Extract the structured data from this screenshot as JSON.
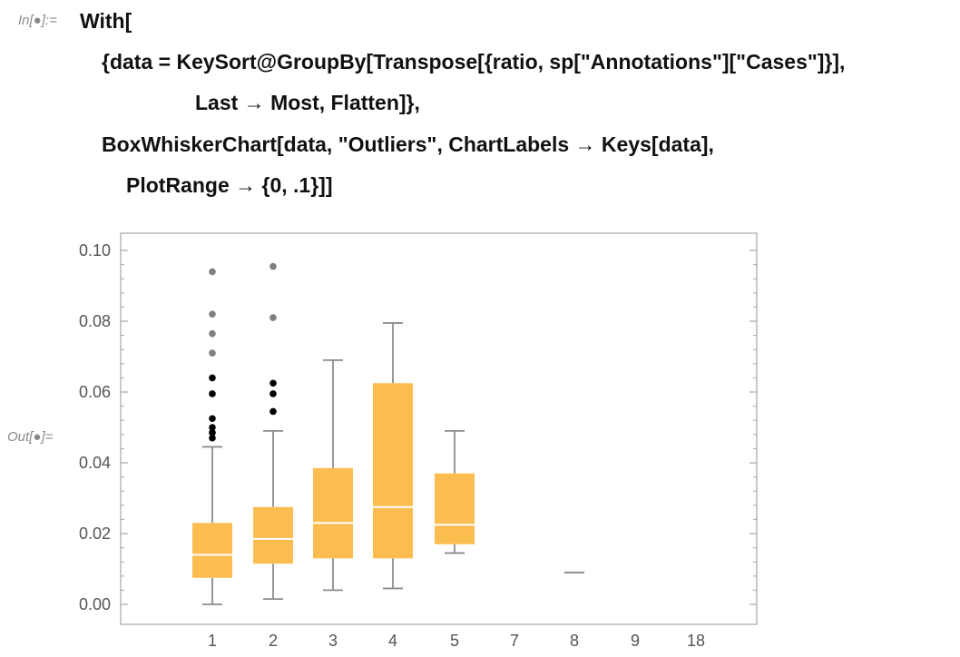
{
  "input_prompt": "In[●]:=",
  "output_prompt": "Out[●]=",
  "code_lines": [
    "With[",
    "{data = KeySort@GroupBy[Transpose[{ratio, sp[\"Annotations\"][\"Cases\"]}],",
    "Last → Most, Flatten]},",
    "BoxWhiskerChart[data, \"Outliers\", ChartLabels → Keys[data],",
    "PlotRange → {0, .1}]]"
  ],
  "colors": {
    "box_fill": "#FBBD50",
    "median": "#FFFFFF",
    "whisker": "#8C8C8C",
    "outlier_near": "#000000",
    "outlier_far": "#7F7F7F",
    "frame": "#A6A6A6"
  },
  "chart_data": {
    "type": "box-whisker",
    "y_ticks": [
      "0.00",
      "0.02",
      "0.04",
      "0.06",
      "0.08",
      "0.10"
    ],
    "ylim": [
      0,
      0.1
    ],
    "categories": [
      "1",
      "2",
      "3",
      "4",
      "5",
      "7",
      "8",
      "9",
      "18"
    ],
    "series": [
      {
        "label": "1",
        "whisker_low": 0.0,
        "q1": 0.0075,
        "median": 0.014,
        "q3": 0.023,
        "whisker_high": 0.0445,
        "outliers_near": [
          0.047,
          0.0485,
          0.05,
          0.0525,
          0.0595,
          0.064
        ],
        "outliers_far": [
          0.071,
          0.0765,
          0.082,
          0.094
        ]
      },
      {
        "label": "2",
        "whisker_low": 0.0015,
        "q1": 0.0115,
        "median": 0.0185,
        "q3": 0.0275,
        "whisker_high": 0.049,
        "outliers_near": [
          0.0545,
          0.0595,
          0.0625
        ],
        "outliers_far": [
          0.081,
          0.0955
        ]
      },
      {
        "label": "3",
        "whisker_low": 0.004,
        "q1": 0.013,
        "median": 0.023,
        "q3": 0.0385,
        "whisker_high": 0.069,
        "outliers_near": [],
        "outliers_far": []
      },
      {
        "label": "4",
        "whisker_low": 0.0045,
        "q1": 0.013,
        "median": 0.0275,
        "q3": 0.0625,
        "whisker_high": 0.0795,
        "outliers_near": [],
        "outliers_far": []
      },
      {
        "label": "5",
        "whisker_low": 0.0145,
        "q1": 0.017,
        "median": 0.0225,
        "q3": 0.037,
        "whisker_high": 0.049,
        "outliers_near": [],
        "outliers_far": []
      },
      {
        "label": "7",
        "whisker_low": null,
        "q1": null,
        "median": null,
        "q3": null,
        "whisker_high": null,
        "outliers_near": [],
        "outliers_far": []
      },
      {
        "label": "8",
        "whisker_low": 0.009,
        "q1": 0.009,
        "median": 0.009,
        "q3": 0.009,
        "whisker_high": 0.009,
        "outliers_near": [],
        "outliers_far": []
      },
      {
        "label": "9",
        "whisker_low": null,
        "q1": null,
        "median": null,
        "q3": null,
        "whisker_high": null,
        "outliers_near": [],
        "outliers_far": []
      },
      {
        "label": "18",
        "whisker_low": null,
        "q1": null,
        "median": null,
        "q3": null,
        "whisker_high": null,
        "outliers_near": [],
        "outliers_far": []
      }
    ]
  }
}
